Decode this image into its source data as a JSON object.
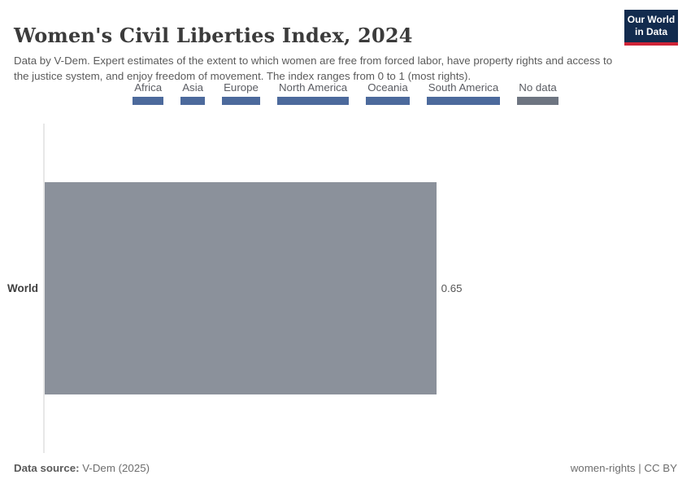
{
  "header": {
    "title": "Women's Civil Liberties Index, 2024",
    "subtitle": "Data by V-Dem. Expert estimates of the extent to which women are free from forced labor, have property rights and access to the justice system, and enjoy freedom of movement. The index ranges from 0 to 1 (most rights).",
    "logo_line1": "Our World",
    "logo_line2": "in Data"
  },
  "colors": {
    "continent_blue": "#4c6a9c",
    "no_data_gray": "#6e7581",
    "bar_gray": "#8b919b",
    "logo_navy": "#122b4e",
    "logo_red": "#cf2437"
  },
  "legend": {
    "items": [
      {
        "label": "Africa",
        "color": "#4c6a9c"
      },
      {
        "label": "Asia",
        "color": "#4c6a9c"
      },
      {
        "label": "Europe",
        "color": "#4c6a9c"
      },
      {
        "label": "North America",
        "color": "#4c6a9c"
      },
      {
        "label": "Oceania",
        "color": "#4c6a9c"
      },
      {
        "label": "South America",
        "color": "#4c6a9c"
      },
      {
        "label": "No data",
        "color": "#6e7581"
      }
    ]
  },
  "chart_data": {
    "type": "bar",
    "orientation": "horizontal",
    "title": "Women's Civil Liberties Index, 2024",
    "categories": [
      "World"
    ],
    "values": [
      0.65
    ],
    "value_labels": [
      "0.65"
    ],
    "bar_color": "#8b919b",
    "xlim": [
      0,
      1
    ],
    "grid": false,
    "legend_position": "top-center"
  },
  "footer": {
    "source_label": "Data source:",
    "source_value": "V-Dem (2025)",
    "license": "women-rights | CC BY"
  }
}
